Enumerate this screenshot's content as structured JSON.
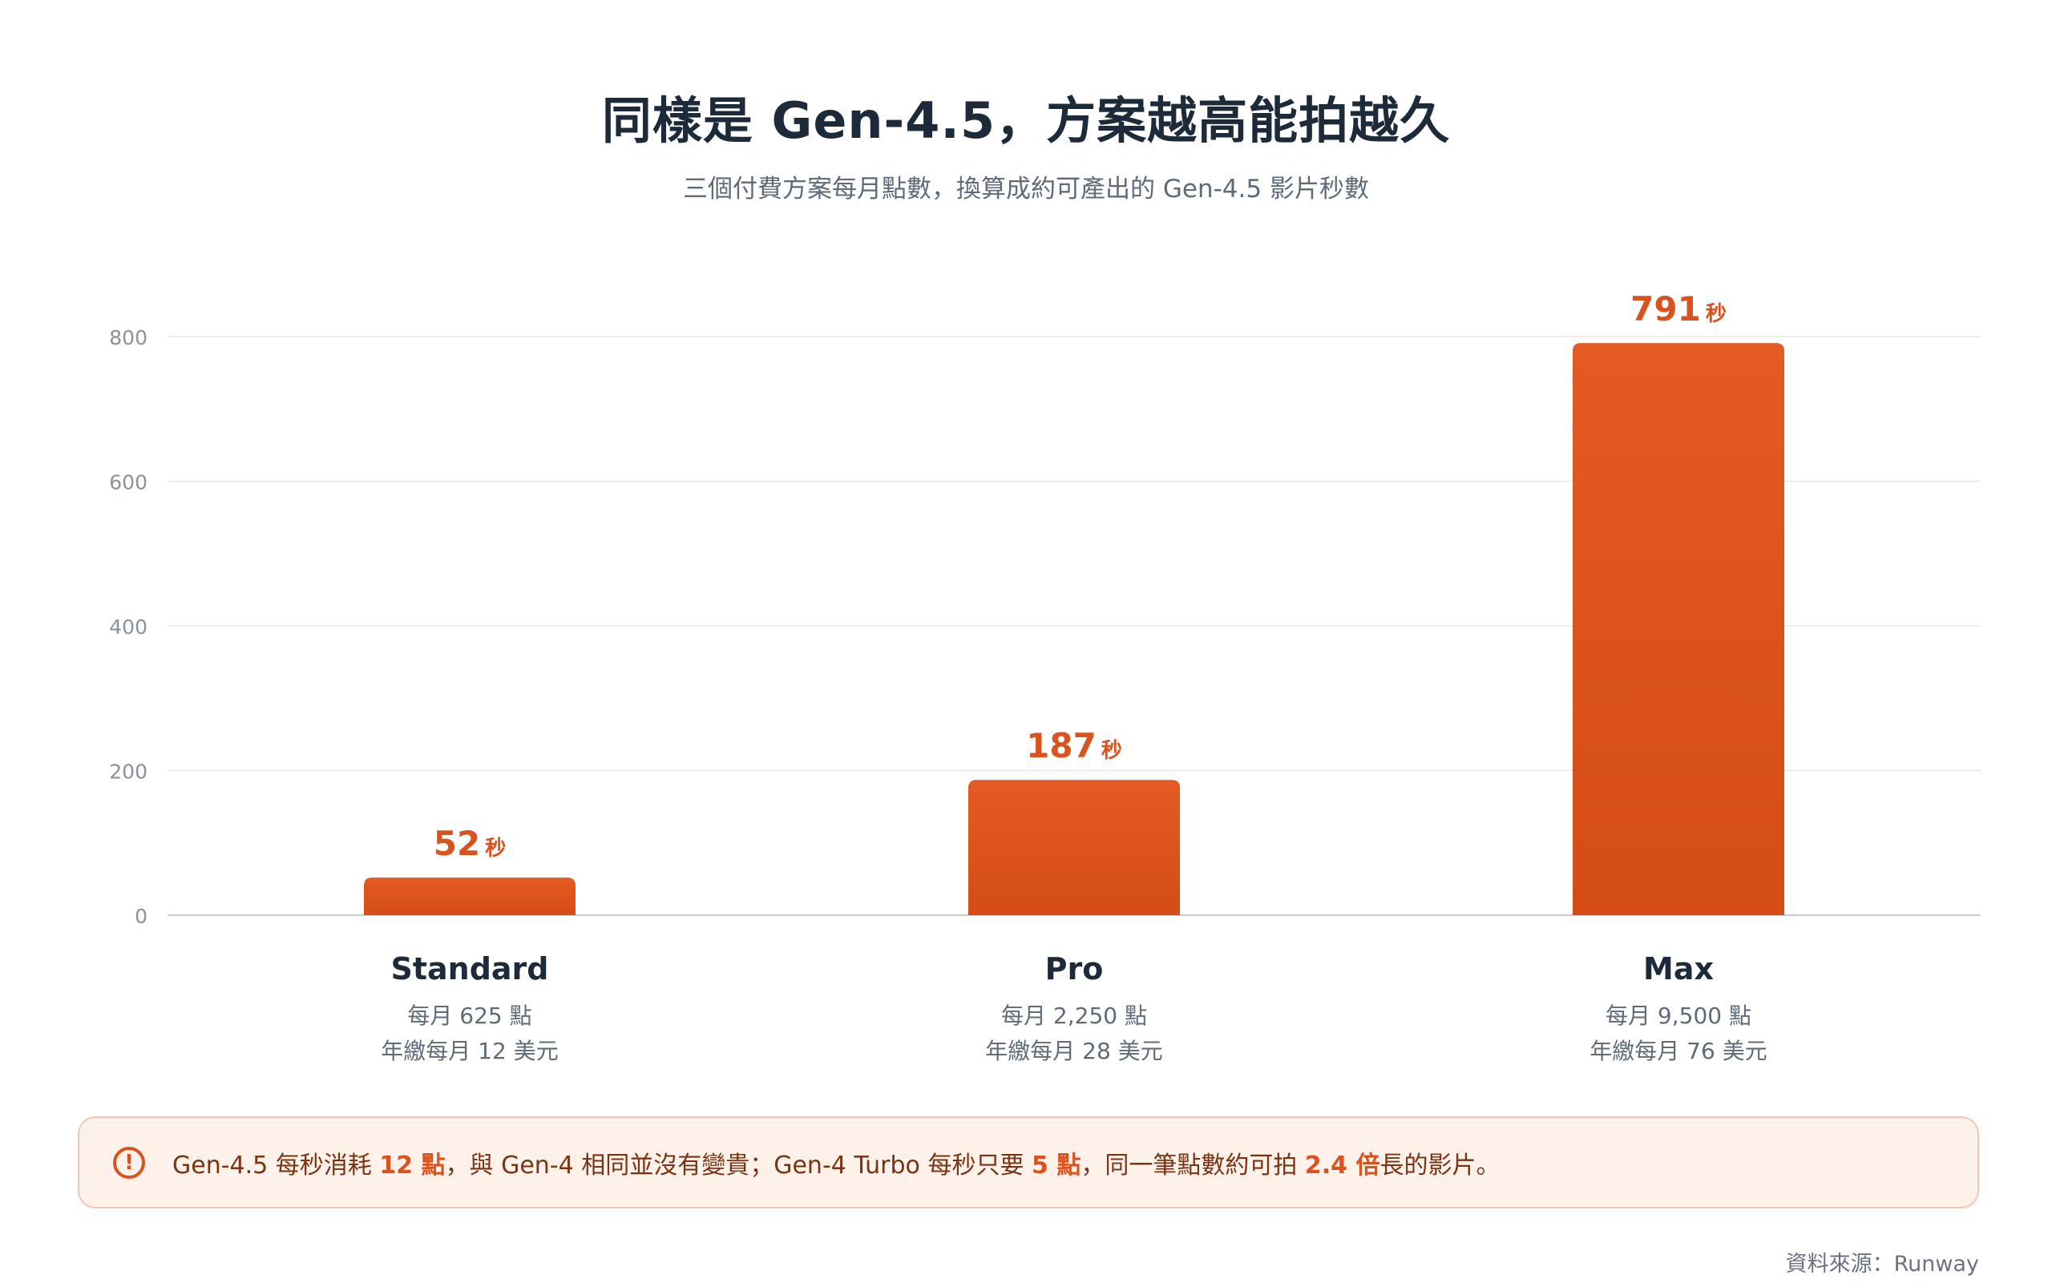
{
  "title": "同樣是 Gen-4.5，方案越高能拍越久",
  "subtitle": "三個付費方案每月點數，換算成約可產出的 Gen-4.5 影片秒數",
  "chart_data": {
    "type": "bar",
    "categories": [
      "Standard",
      "Pro",
      "Max"
    ],
    "values": [
      52,
      187,
      791
    ],
    "value_unit": "秒",
    "ylim": [
      0,
      800
    ],
    "yticks": [
      "0",
      "200",
      "400",
      "600",
      "800"
    ],
    "grid": true,
    "details": [
      [
        "每月 625 點",
        "年繳每月 12 美元"
      ],
      [
        "每月 2,250 點",
        "年繳每月 28 美元"
      ],
      [
        "每月 9,500 點",
        "年繳每月 76 美元"
      ]
    ],
    "bar_color_top": "#e45a22",
    "bar_color_bottom": "#d44c16"
  },
  "note": {
    "icon": "alert-circle-icon",
    "parts": [
      {
        "text": "Gen-4.5 每秒消耗 ",
        "bold": false
      },
      {
        "text": "12 點",
        "bold": true
      },
      {
        "text": "，與 Gen-4 相同並沒有變貴；Gen-4 Turbo 每秒只要 ",
        "bold": false
      },
      {
        "text": "5 點",
        "bold": true
      },
      {
        "text": "，同一筆點數約可拍 ",
        "bold": false
      },
      {
        "text": "2.4 倍",
        "bold": true
      },
      {
        "text": "長的影片。",
        "bold": false
      }
    ]
  },
  "source": "資料來源：Runway"
}
